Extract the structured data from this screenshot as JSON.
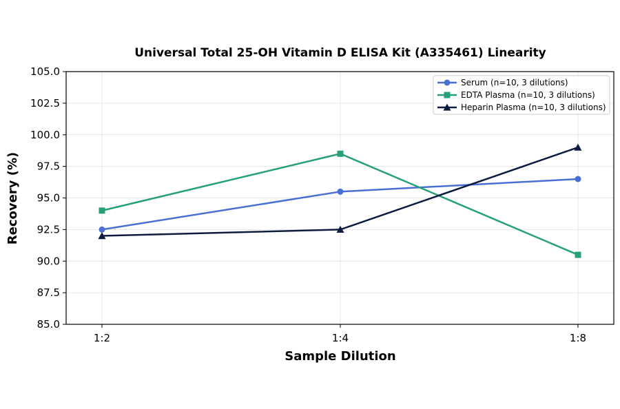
{
  "chart_data": {
    "type": "line",
    "title": "Universal Total 25-OH Vitamin D ELISA Kit (A335461) Linearity",
    "xlabel": "Sample Dilution",
    "ylabel": "Recovery (%)",
    "categories": [
      "1:2",
      "1:4",
      "1:8"
    ],
    "ylim": [
      85.0,
      105.0
    ],
    "yticks": [
      "85.0",
      "87.5",
      "90.0",
      "92.5",
      "95.0",
      "97.5",
      "100.0",
      "102.5",
      "105.0"
    ],
    "grid": true,
    "legend_position": "top-right",
    "series": [
      {
        "name": "Serum (n=10, 3 dilutions)",
        "values": [
          92.5,
          95.5,
          96.5
        ],
        "color": "#4a6fd4",
        "marker": "circle"
      },
      {
        "name": "EDTA Plasma (n=10, 3 dilutions)",
        "values": [
          94.0,
          98.5,
          90.5
        ],
        "color": "#26a07a",
        "marker": "square"
      },
      {
        "name": "Heparin Plasma (n=10, 3 dilutions)",
        "values": [
          92.0,
          92.5,
          99.0
        ],
        "color": "#0d1b3e",
        "marker": "triangle"
      }
    ]
  }
}
